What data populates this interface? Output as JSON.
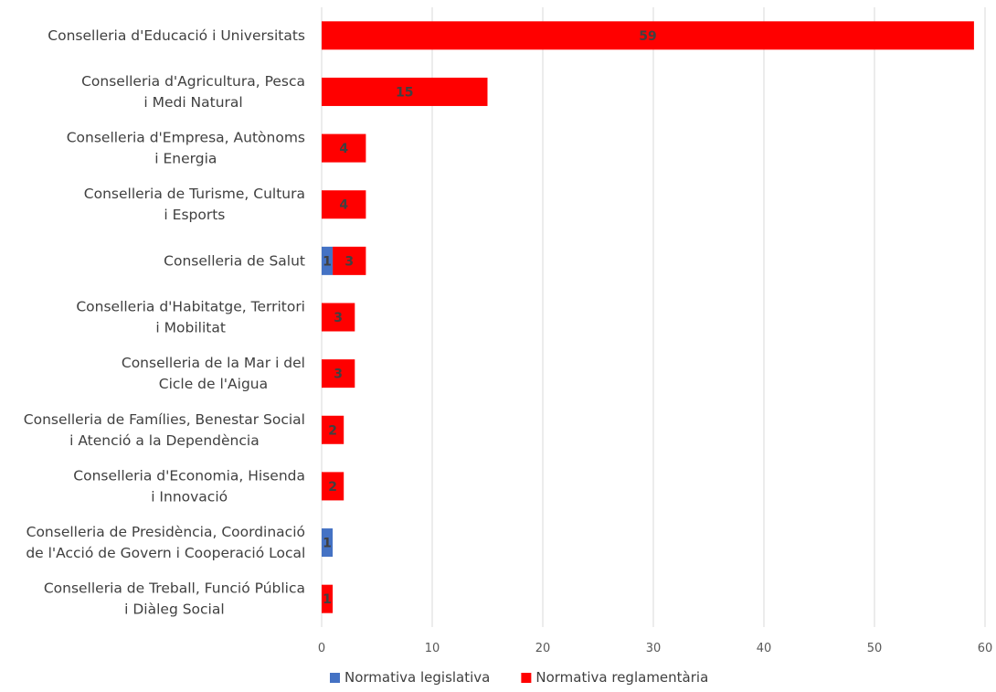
{
  "chart_data": {
    "type": "bar",
    "orientation": "horizontal",
    "stacked": true,
    "categories": [
      [
        "Conselleria d'Educació i Universitats"
      ],
      [
        "Conselleria d'Agricultura, Pesca",
        "i Medi Natural"
      ],
      [
        "Conselleria d'Empresa, Autònoms",
        "i Energia"
      ],
      [
        "Conselleria de Turisme, Cultura",
        "i Esports"
      ],
      [
        "Conselleria de Salut"
      ],
      [
        "Conselleria d'Habitatge, Territori",
        "i Mobilitat"
      ],
      [
        "Conselleria de la Mar i del",
        "Cicle de l'Aigua"
      ],
      [
        "Conselleria de Famílies, Benestar Social",
        "i Atenció a la Dependència"
      ],
      [
        "Conselleria d'Economia, Hisenda",
        "i Innovació"
      ],
      [
        "Conselleria de Presidència, Coordinació",
        "de l'Acció de Govern i Cooperació Local"
      ],
      [
        "Conselleria de Treball, Funció Pública",
        "i Diàleg Social"
      ]
    ],
    "series": [
      {
        "name": "Normativa legislativa",
        "color": "#4472C4",
        "values": [
          0,
          0,
          0,
          0,
          1,
          0,
          0,
          0,
          0,
          1,
          0
        ]
      },
      {
        "name": "Normativa reglamentària",
        "color": "#FF0000",
        "values": [
          59,
          15,
          4,
          4,
          3,
          3,
          3,
          2,
          2,
          0,
          1
        ]
      }
    ],
    "xlim": [
      0,
      60
    ],
    "xticks": [
      0,
      10,
      20,
      30,
      40,
      50,
      60
    ],
    "grid": true,
    "legend_position": "bottom"
  }
}
